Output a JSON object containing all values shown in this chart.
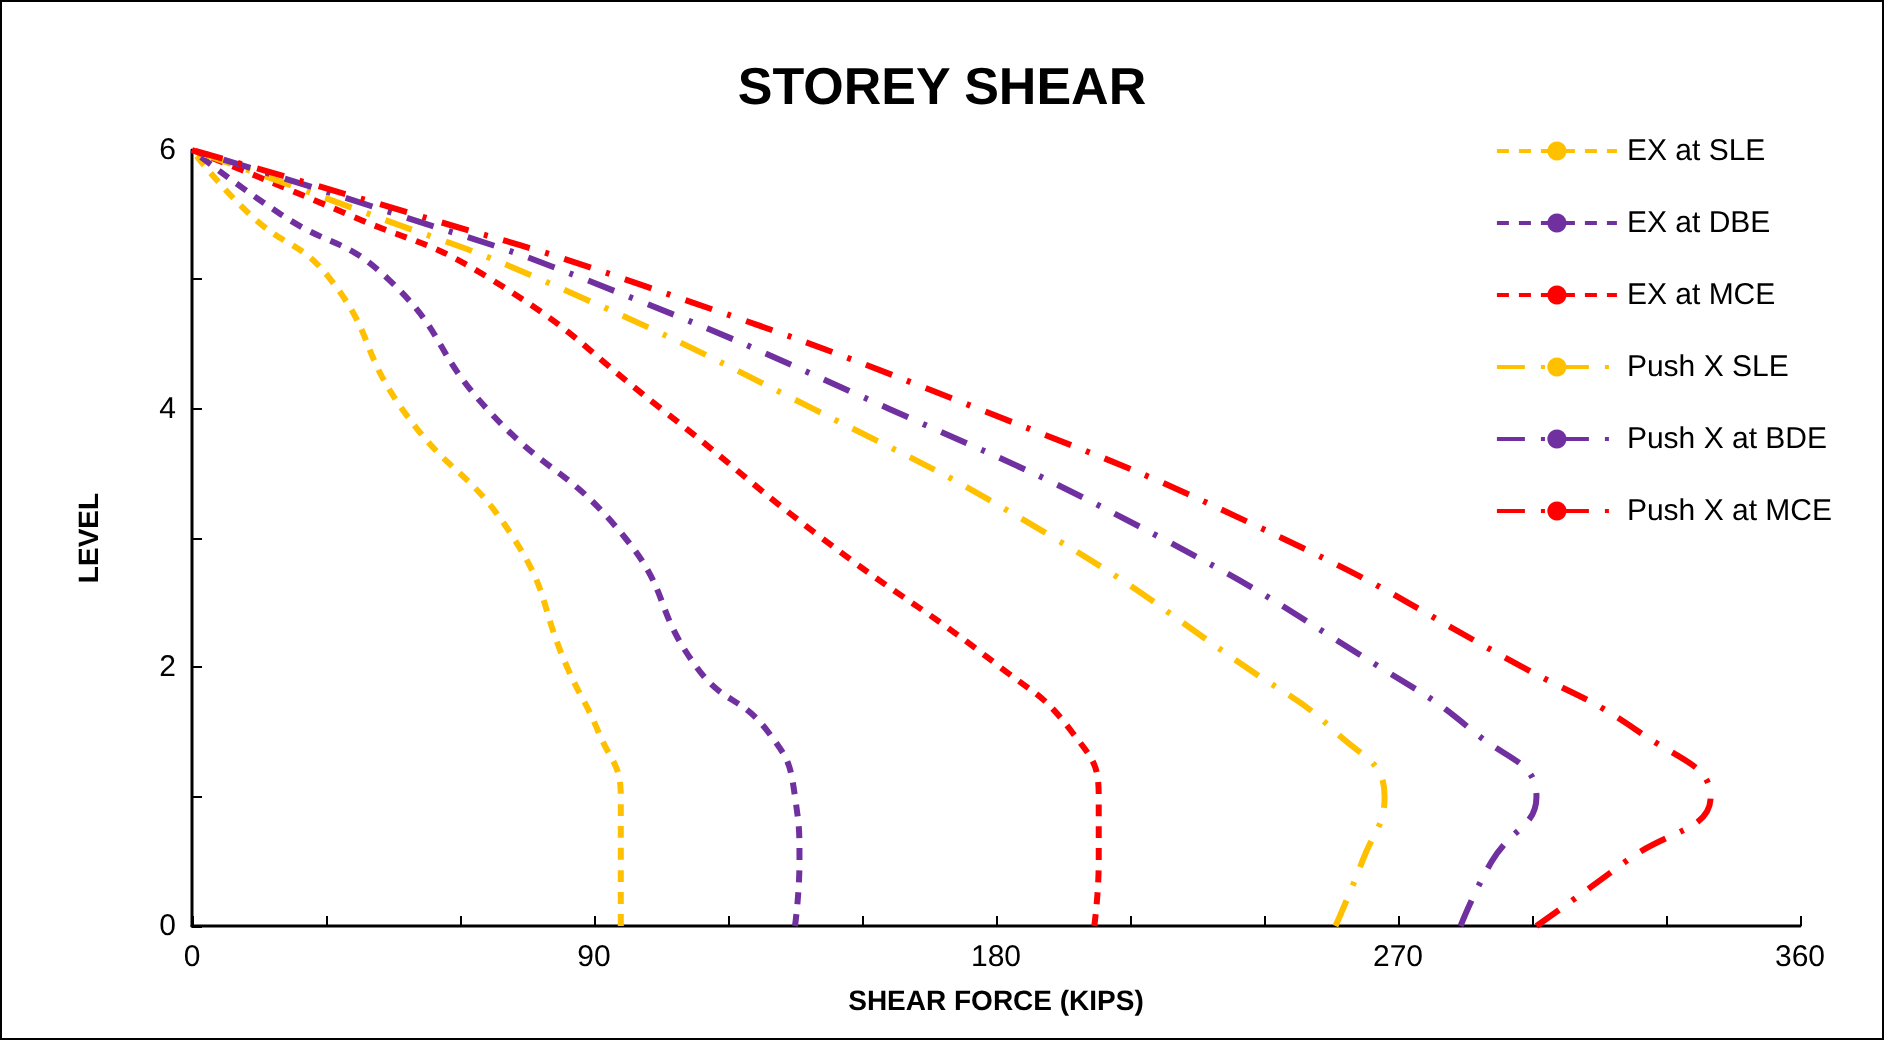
{
  "chart_data": {
    "type": "line",
    "title": "STOREY SHEAR",
    "xlabel": "SHEAR FORCE (KIPS)",
    "ylabel": "LEVEL",
    "xlim": [
      0,
      360
    ],
    "xticks": [
      0,
      {
        "value": 30,
        "label": null
      },
      {
        "value": 60,
        "label": null
      },
      90,
      {
        "value": 120,
        "label": null
      },
      {
        "value": 150,
        "label": null
      },
      180,
      {
        "value": 210,
        "label": null
      },
      {
        "value": 240,
        "label": null
      },
      270,
      {
        "value": 300,
        "label": null
      },
      {
        "value": 330,
        "label": null
      },
      360
    ],
    "ylim": [
      0,
      6
    ],
    "yticks": [
      0,
      {
        "value": 1,
        "label": null
      },
      2,
      {
        "value": 3,
        "label": null
      },
      4,
      {
        "value": 5,
        "label": null
      },
      6
    ],
    "grid": false,
    "legend": "top right",
    "marker": "none",
    "series": [
      {
        "name": "EX at SLE",
        "color": "#ffc000",
        "line_style": "dashed",
        "x": [
          96,
          96,
          96,
          91,
          84,
          72,
          47,
          31,
          13,
          0
        ],
        "values": [
          0,
          0.5,
          1,
          1.5,
          2,
          3,
          4,
          5,
          5.5,
          6
        ]
      },
      {
        "name": "EX at DBE",
        "color": "#7030a0",
        "line_style": "dashed",
        "x": [
          135,
          136,
          135,
          129,
          113,
          97,
          66,
          44,
          20,
          0
        ],
        "values": [
          0,
          0.5,
          1,
          1.5,
          2,
          3,
          4,
          5,
          5.5,
          6
        ]
      },
      {
        "name": "EX at MCE",
        "color": "#ff0000",
        "line_style": "dashed",
        "x": [
          202,
          203,
          203,
          197,
          181,
          141,
          105,
          67,
          35,
          0
        ],
        "values": [
          0,
          0.5,
          1,
          1.5,
          2,
          3,
          4,
          5,
          5.5,
          6
        ]
      },
      {
        "name": "Push X SLE",
        "color": "#ffc000",
        "line_style": "dashdot",
        "x": [
          256,
          262,
          267,
          256,
          236,
          193,
          139,
          78,
          40,
          0
        ],
        "values": [
          0,
          0.5,
          1,
          1.5,
          2,
          3,
          4,
          5,
          5.5,
          6
        ]
      },
      {
        "name": "Push X at BDE",
        "color": "#7030a0",
        "line_style": "dashdot",
        "x": [
          284,
          291,
          301,
          287,
          266,
          217,
          156,
          88,
          46,
          0
        ],
        "values": [
          0,
          0.5,
          1,
          1.5,
          2,
          3,
          4,
          5,
          5.5,
          6
        ]
      },
      {
        "name": "Push X at MCE",
        "color": "#ff0000",
        "line_style": "dashdot",
        "x": [
          301,
          321,
          340,
          324,
          298,
          244,
          176,
          97,
          50,
          0
        ],
        "values": [
          0,
          0.5,
          1,
          1.5,
          2,
          3,
          4,
          5,
          5.5,
          6
        ]
      }
    ]
  }
}
